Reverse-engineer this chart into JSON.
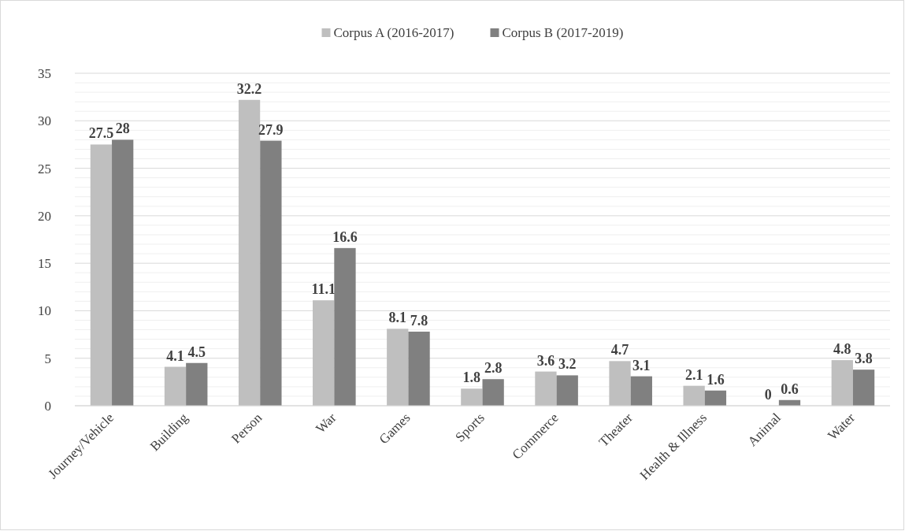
{
  "chart_data": {
    "type": "bar",
    "categories": [
      "Journey/Vehicle",
      "Building",
      "Person",
      "War",
      "Games",
      "Sports",
      "Commerce",
      "Theater",
      "Health & Illness",
      "Animal",
      "Water"
    ],
    "series": [
      {
        "name": "Corpus A (2016-2017)",
        "color": "#bfbfbf",
        "values": [
          27.5,
          4.1,
          32.2,
          11.1,
          8.1,
          1.8,
          3.6,
          4.7,
          2.1,
          0,
          4.8
        ]
      },
      {
        "name": "Corpus B (2017-2019)",
        "color": "#808080",
        "values": [
          28,
          4.5,
          27.9,
          16.6,
          7.8,
          2.8,
          3.2,
          3.1,
          1.6,
          0.6,
          3.8
        ]
      }
    ],
    "ylim": [
      0,
      35
    ],
    "yticks": [
      0,
      {
        "value": 1,
        "label": null
      },
      {
        "value": 2,
        "label": null
      },
      {
        "value": 3,
        "label": null
      },
      {
        "value": 4,
        "label": null
      },
      5,
      {
        "value": 6,
        "label": null
      },
      {
        "value": 7,
        "label": null
      },
      {
        "value": 8,
        "label": null
      },
      {
        "value": 9,
        "label": null
      },
      10,
      {
        "value": 11,
        "label": null
      },
      {
        "value": 12,
        "label": null
      },
      {
        "value": 13,
        "label": null
      },
      {
        "value": 14,
        "label": null
      },
      15,
      {
        "value": 16,
        "label": null
      },
      {
        "value": 17,
        "label": null
      },
      {
        "value": 18,
        "label": null
      },
      {
        "value": 19,
        "label": null
      },
      20,
      {
        "value": 21,
        "label": null
      },
      {
        "value": 22,
        "label": null
      },
      {
        "value": 23,
        "label": null
      },
      {
        "value": 24,
        "label": null
      },
      25,
      {
        "value": 26,
        "label": null
      },
      {
        "value": 27,
        "label": null
      },
      {
        "value": 28,
        "label": null
      },
      {
        "value": 29,
        "label": null
      },
      30,
      {
        "value": 31,
        "label": null
      },
      {
        "value": 32,
        "label": null
      },
      {
        "value": 33,
        "label": null
      },
      {
        "value": 34,
        "label": null
      },
      35
    ],
    "grid": "y",
    "legend": "top",
    "data_labels": true
  }
}
